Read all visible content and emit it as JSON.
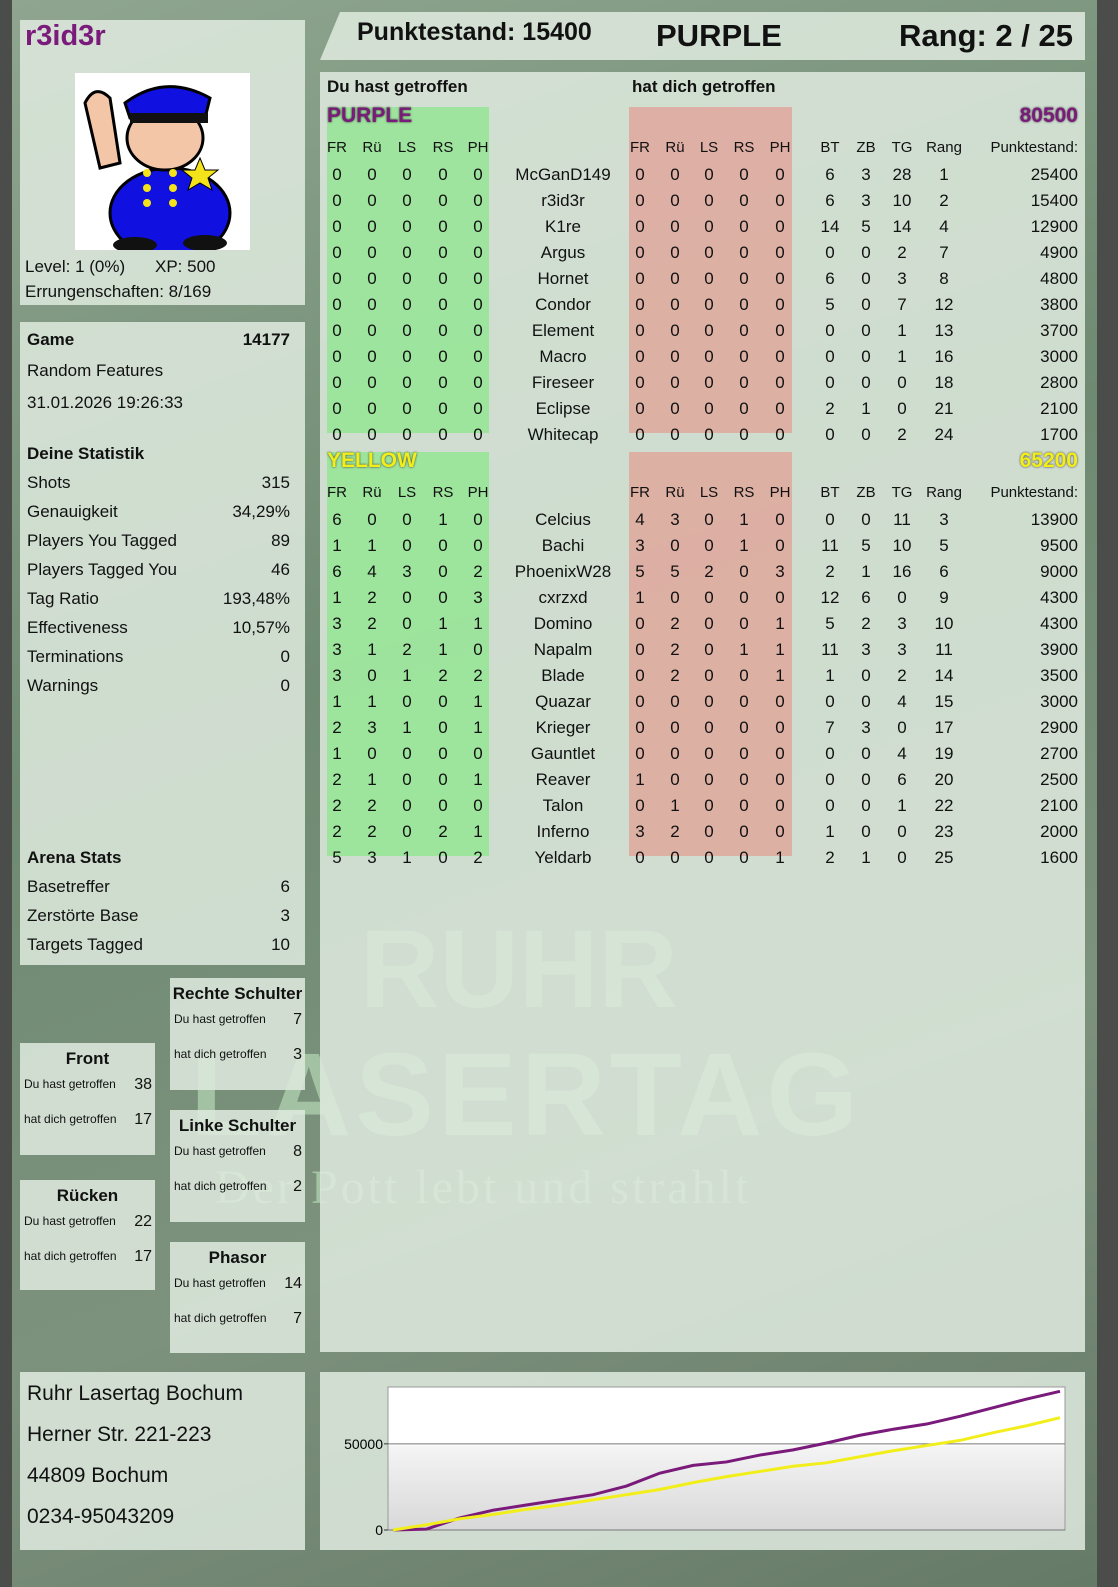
{
  "profile": {
    "name": "r3id3r",
    "level": "Level: 1 (0%)",
    "xp": "XP: 500",
    "achievements": "Errungenschaften: 8/169",
    "avatar_icon": "police-officer-avatar"
  },
  "header": {
    "score": "Punktestand: 15400",
    "team": "PURPLE",
    "rank": "Rang: 2 / 25"
  },
  "game": {
    "label": "Game",
    "id": "14177",
    "mode": "Random Features",
    "datetime": "31.01.2026 19:26:33"
  },
  "stats": {
    "title": "Deine Statistik",
    "items": [
      {
        "label": "Shots",
        "value": "315"
      },
      {
        "label": "Genauigkeit",
        "value": "34,29%"
      },
      {
        "label": "Players You Tagged",
        "value": "89"
      },
      {
        "label": "Players Tagged You",
        "value": "46"
      },
      {
        "label": "Tag Ratio",
        "value": "193,48%"
      },
      {
        "label": "Effectiveness",
        "value": "10,57%"
      },
      {
        "label": "Terminations",
        "value": "0"
      },
      {
        "label": "Warnings",
        "value": "0"
      }
    ]
  },
  "arena": {
    "title": "Arena Stats",
    "items": [
      {
        "label": "Basetreffer",
        "value": "6"
      },
      {
        "label": "Zerstörte Base",
        "value": "3"
      },
      {
        "label": "Targets Tagged",
        "value": "10"
      }
    ]
  },
  "zones": [
    {
      "title": "Front",
      "hit_label": "Du hast getroffen",
      "hit": "38",
      "got_label": "hat dich getroffen",
      "got": "17"
    },
    {
      "title": "Rücken",
      "hit_label": "Du hast getroffen",
      "hit": "22",
      "got_label": "hat dich getroffen",
      "got": "17"
    },
    {
      "title": "Rechte Schulter",
      "hit_label": "Du hast getroffen",
      "hit": "7",
      "got_label": "hat dich getroffen",
      "got": "3"
    },
    {
      "title": "Linke Schulter",
      "hit_label": "Du hast getroffen",
      "hit": "8",
      "got_label": "hat dich getroffen",
      "got": "2"
    },
    {
      "title": "Phasor",
      "hit_label": "Du hast getroffen",
      "hit": "14",
      "got_label": "hat dich getroffen",
      "got": "7"
    }
  ],
  "address": [
    "Ruhr Lasertag Bochum",
    "Herner Str. 221-223",
    "44809 Bochum",
    "0234-95043209"
  ],
  "logo": {
    "line1": "RUHR",
    "line2": "LASERTAG",
    "slogan": "Der Pott lebt und strahlt"
  },
  "table": {
    "you_hit": "Du hast getroffen",
    "hit_you": "hat dich getroffen",
    "hit_cols": [
      "FR",
      "Rü",
      "LS",
      "RS",
      "PH"
    ],
    "stat_cols": [
      "BT",
      "ZB",
      "TG",
      "Rang"
    ],
    "score_col": "Punktestand:",
    "teams": [
      {
        "name": "PURPLE",
        "score": "80500",
        "color": "#7a1a7a",
        "players": [
          [
            "McGanD149",
            [
              0,
              0,
              0,
              0,
              0
            ],
            [
              0,
              0,
              0,
              0,
              0
            ],
            [
              6,
              3,
              28,
              1
            ],
            "25400"
          ],
          [
            "r3id3r",
            [
              0,
              0,
              0,
              0,
              0
            ],
            [
              0,
              0,
              0,
              0,
              0
            ],
            [
              6,
              3,
              10,
              2
            ],
            "15400"
          ],
          [
            "K1re",
            [
              0,
              0,
              0,
              0,
              0
            ],
            [
              0,
              0,
              0,
              0,
              0
            ],
            [
              14,
              5,
              14,
              4
            ],
            "12900"
          ],
          [
            "Argus",
            [
              0,
              0,
              0,
              0,
              0
            ],
            [
              0,
              0,
              0,
              0,
              0
            ],
            [
              0,
              0,
              2,
              7
            ],
            "4900"
          ],
          [
            "Hornet",
            [
              0,
              0,
              0,
              0,
              0
            ],
            [
              0,
              0,
              0,
              0,
              0
            ],
            [
              6,
              0,
              3,
              8
            ],
            "4800"
          ],
          [
            "Condor",
            [
              0,
              0,
              0,
              0,
              0
            ],
            [
              0,
              0,
              0,
              0,
              0
            ],
            [
              5,
              0,
              7,
              12
            ],
            "3800"
          ],
          [
            "Element",
            [
              0,
              0,
              0,
              0,
              0
            ],
            [
              0,
              0,
              0,
              0,
              0
            ],
            [
              0,
              0,
              1,
              13
            ],
            "3700"
          ],
          [
            "Macro",
            [
              0,
              0,
              0,
              0,
              0
            ],
            [
              0,
              0,
              0,
              0,
              0
            ],
            [
              0,
              0,
              1,
              16
            ],
            "3000"
          ],
          [
            "Fireseer",
            [
              0,
              0,
              0,
              0,
              0
            ],
            [
              0,
              0,
              0,
              0,
              0
            ],
            [
              0,
              0,
              0,
              18
            ],
            "2800"
          ],
          [
            "Eclipse",
            [
              0,
              0,
              0,
              0,
              0
            ],
            [
              0,
              0,
              0,
              0,
              0
            ],
            [
              2,
              1,
              0,
              21
            ],
            "2100"
          ],
          [
            "Whitecap",
            [
              0,
              0,
              0,
              0,
              0
            ],
            [
              0,
              0,
              0,
              0,
              0
            ],
            [
              0,
              0,
              2,
              24
            ],
            "1700"
          ]
        ]
      },
      {
        "name": "YELLOW",
        "score": "65200",
        "color": "#f2ee1a",
        "players": [
          [
            "Celcius",
            [
              6,
              0,
              0,
              1,
              0
            ],
            [
              4,
              3,
              0,
              1,
              0
            ],
            [
              0,
              0,
              11,
              3
            ],
            "13900"
          ],
          [
            "Bachi",
            [
              1,
              1,
              0,
              0,
              0
            ],
            [
              3,
              0,
              0,
              1,
              0
            ],
            [
              11,
              5,
              10,
              5
            ],
            "9500"
          ],
          [
            "PhoenixW28",
            [
              6,
              4,
              3,
              0,
              2
            ],
            [
              5,
              5,
              2,
              0,
              3
            ],
            [
              2,
              1,
              16,
              6
            ],
            "9000"
          ],
          [
            "cxrzxd",
            [
              1,
              2,
              0,
              0,
              3
            ],
            [
              1,
              0,
              0,
              0,
              0
            ],
            [
              12,
              6,
              0,
              9
            ],
            "4300"
          ],
          [
            "Domino",
            [
              3,
              2,
              0,
              1,
              1
            ],
            [
              0,
              2,
              0,
              0,
              1
            ],
            [
              5,
              2,
              3,
              10
            ],
            "4300"
          ],
          [
            "Napalm",
            [
              3,
              1,
              2,
              1,
              0
            ],
            [
              0,
              2,
              0,
              1,
              1
            ],
            [
              11,
              3,
              3,
              11
            ],
            "3900"
          ],
          [
            "Blade",
            [
              3,
              0,
              1,
              2,
              2
            ],
            [
              0,
              2,
              0,
              0,
              1
            ],
            [
              1,
              0,
              2,
              14
            ],
            "3500"
          ],
          [
            "Quazar",
            [
              1,
              1,
              0,
              0,
              1
            ],
            [
              0,
              0,
              0,
              0,
              0
            ],
            [
              0,
              0,
              4,
              15
            ],
            "3000"
          ],
          [
            "Krieger",
            [
              2,
              3,
              1,
              0,
              1
            ],
            [
              0,
              0,
              0,
              0,
              0
            ],
            [
              7,
              3,
              0,
              17
            ],
            "2900"
          ],
          [
            "Gauntlet",
            [
              1,
              0,
              0,
              0,
              0
            ],
            [
              0,
              0,
              0,
              0,
              0
            ],
            [
              0,
              0,
              4,
              19
            ],
            "2700"
          ],
          [
            "Reaver",
            [
              2,
              1,
              0,
              0,
              1
            ],
            [
              1,
              0,
              0,
              0,
              0
            ],
            [
              0,
              0,
              6,
              20
            ],
            "2500"
          ],
          [
            "Talon",
            [
              2,
              2,
              0,
              0,
              0
            ],
            [
              0,
              1,
              0,
              0,
              0
            ],
            [
              0,
              0,
              1,
              22
            ],
            "2100"
          ],
          [
            "Inferno",
            [
              2,
              2,
              0,
              2,
              1
            ],
            [
              3,
              2,
              0,
              0,
              0
            ],
            [
              1,
              0,
              0,
              23
            ],
            "2000"
          ],
          [
            "Yeldarb",
            [
              5,
              3,
              1,
              0,
              2
            ],
            [
              0,
              0,
              0,
              0,
              1
            ],
            [
              2,
              1,
              0,
              25
            ],
            "1600"
          ]
        ]
      }
    ]
  },
  "chart_data": {
    "type": "line",
    "title": "",
    "xlabel": "",
    "ylabel": "",
    "ylim": [
      0,
      83000
    ],
    "yticks": [
      "0",
      "50000"
    ],
    "grid": "horizontal at 50000",
    "x": [
      0,
      1,
      2,
      3,
      4,
      5,
      6,
      7,
      8,
      9,
      10,
      11,
      12,
      13,
      14,
      15,
      16,
      17,
      18,
      19,
      20
    ],
    "series": [
      {
        "color": "#7a1a7a",
        "values": [
          0,
          500,
          7000,
          11500,
          14500,
          17500,
          20500,
          25500,
          33000,
          37500,
          39500,
          43500,
          46500,
          50500,
          55000,
          58500,
          61500,
          66000,
          71000,
          76000,
          80500
        ]
      },
      {
        "color": "#f2ee1a",
        "values": [
          0,
          3000,
          6500,
          9000,
          12000,
          14500,
          17500,
          20500,
          23500,
          27500,
          31000,
          34000,
          37000,
          39000,
          42500,
          46000,
          49000,
          52000,
          56500,
          60500,
          65200
        ]
      }
    ]
  }
}
